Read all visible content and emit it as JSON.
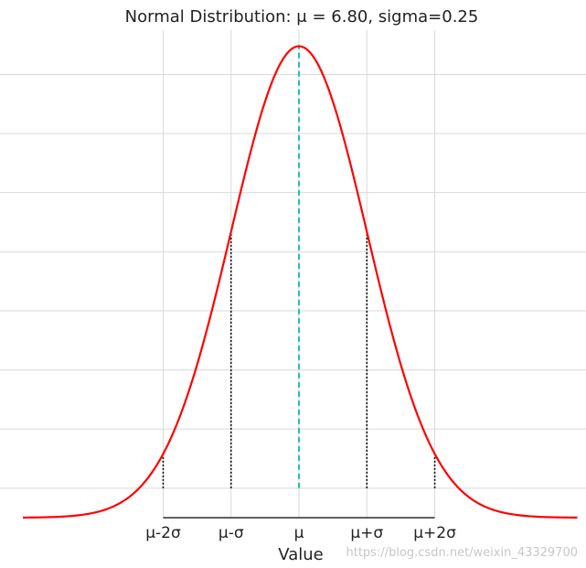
{
  "chart_data": {
    "type": "line",
    "title": "Normal Distribution: μ = 6.80, sigma=0.25",
    "xlabel": "Value",
    "ylabel": "",
    "mu": 6.8,
    "sigma": 0.25,
    "xlim": [
      5.78,
      7.83
    ],
    "ylim": [
      0,
      1.65
    ],
    "x_ticks": [
      6.3,
      6.55,
      6.8,
      7.05,
      7.3
    ],
    "x_tick_labels": [
      "μ-2σ",
      "μ-σ",
      "μ",
      "μ+σ",
      "μ+2σ"
    ],
    "y_gridlines": [
      0.1,
      0.3,
      0.5,
      0.7,
      0.9,
      1.1,
      1.3,
      1.5
    ],
    "y_tick_labels": [],
    "series": [
      {
        "color": "#ff0000",
        "function": "normal_pdf",
        "x_range": [
          5.55,
          8.05
        ]
      }
    ],
    "markers": [
      {
        "x": 6.3,
        "style": "dotted",
        "color": "#000000"
      },
      {
        "x": 6.55,
        "style": "dotted",
        "color": "#000000"
      },
      {
        "x": 6.8,
        "style": "dashed",
        "color": "#20c0b0"
      },
      {
        "x": 7.05,
        "style": "dotted",
        "color": "#000000"
      },
      {
        "x": 7.3,
        "style": "dotted",
        "color": "#000000"
      }
    ],
    "grid": true,
    "grid_color": "#d9d9d9",
    "axis_color": "#000000"
  },
  "watermark": "https://blog.csdn.net/weixin_43329700"
}
